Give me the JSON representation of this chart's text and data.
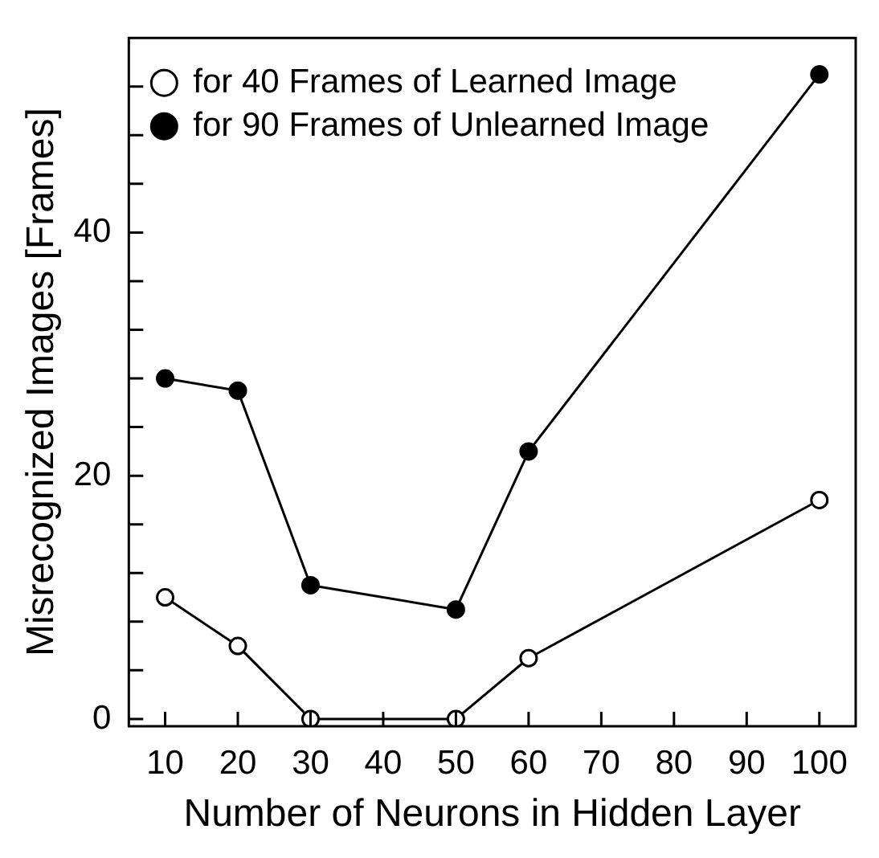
{
  "chart_data": {
    "type": "line",
    "xlabel": "Number of Neurons in Hidden Layer",
    "ylabel": "Misrecognized Images [Frames]",
    "x": [
      10,
      20,
      30,
      50,
      60,
      100
    ],
    "series": [
      {
        "name": "for 40 Frames of Learned Image",
        "color": "#000000",
        "values": [
          10,
          6,
          0,
          0,
          5,
          18
        ]
      },
      {
        "name": "for 90 Frames of Unlearned Image",
        "color": "#000000",
        "values": [
          28,
          27,
          11,
          9,
          22,
          53
        ]
      }
    ],
    "xlim": [
      5,
      105
    ],
    "xticks": [
      10,
      20,
      30,
      40,
      50,
      60,
      70,
      80,
      90,
      100
    ],
    "ylim": [
      -0.6,
      56
    ],
    "yticks": [
      0,
      {
        "value": 4,
        "label": null
      },
      {
        "value": 8,
        "label": null
      },
      {
        "value": 12,
        "label": null
      },
      {
        "value": 16,
        "label": null
      },
      20,
      {
        "value": 24,
        "label": null
      },
      {
        "value": 28,
        "label": null
      },
      {
        "value": 32,
        "label": null
      },
      {
        "value": 36,
        "label": null
      },
      40,
      {
        "value": 44,
        "label": null
      },
      {
        "value": 48,
        "label": null
      },
      {
        "value": 52,
        "label": null
      }
    ],
    "grid": false,
    "legend": "top left",
    "marker": "circle",
    "line_style": "solid"
  }
}
